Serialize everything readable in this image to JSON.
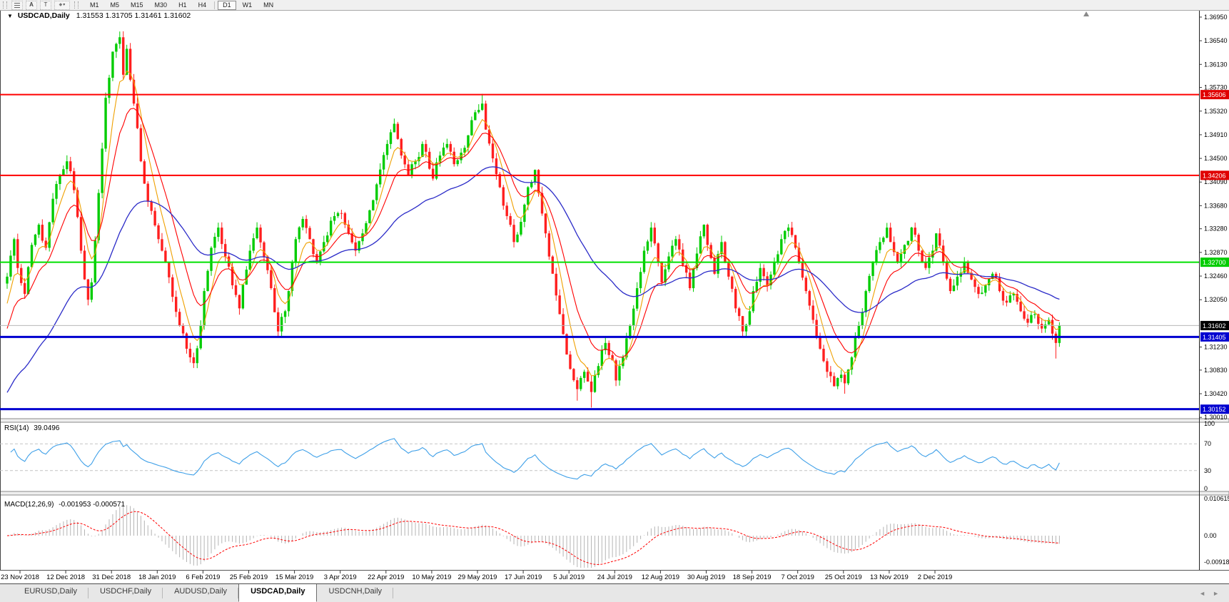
{
  "window": {
    "toolbar": {
      "tools": [
        {
          "name": "fibonacci-tool",
          "glyph": ""
        },
        {
          "name": "text-label-tool",
          "glyph": "A"
        },
        {
          "name": "text-tool",
          "glyph": "T"
        },
        {
          "name": "shapes-tool",
          "glyph": "◆",
          "caret": "▾"
        }
      ],
      "timeframes": [
        {
          "label": "M1",
          "active": false
        },
        {
          "label": "M5",
          "active": false
        },
        {
          "label": "M15",
          "active": false
        },
        {
          "label": "M30",
          "active": false
        },
        {
          "label": "H1",
          "active": false
        },
        {
          "label": "H4",
          "active": false
        },
        {
          "label": "D1",
          "active": true
        },
        {
          "label": "W1",
          "active": false
        },
        {
          "label": "MN",
          "active": false
        }
      ]
    },
    "tabs": {
      "items": [
        {
          "label": "EURUSD,Daily",
          "active": false
        },
        {
          "label": "USDCHF,Daily",
          "active": false
        },
        {
          "label": "AUDUSD,Daily",
          "active": false
        },
        {
          "label": "USDCAD,Daily",
          "active": true
        },
        {
          "label": "USDCNH,Daily",
          "active": false
        }
      ],
      "scroll_left": "◄",
      "scroll_right": "►"
    }
  },
  "chart_data": {
    "type": "candlestick",
    "symbol": "USDCAD",
    "timeframe": "Daily",
    "symbol_label": "USDCAD,Daily",
    "marker": "▼",
    "ohlc_label": "1.31553 1.31705 1.31461 1.31602",
    "open": "1.31553",
    "high": "1.31705",
    "low": "1.31461",
    "close": "1.31602",
    "current_price": "1.31602",
    "y_axis_labels": [
      "1.36950",
      "1.36540",
      "1.36130",
      "1.35730",
      "1.35320",
      "1.34910",
      "1.34500",
      "1.34090",
      "1.33680",
      "1.33280",
      "1.32870",
      "1.32460",
      "1.32050",
      "1.31230",
      "1.30830",
      "1.30420",
      "1.30010"
    ],
    "x_axis_labels": [
      "23 Nov 2018",
      "12 Dec 2018",
      "31 Dec 2018",
      "18 Jan 2019",
      "6 Feb 2019",
      "25 Feb 2019",
      "15 Mar 2019",
      "3 Apr 2019",
      "22 Apr 2019",
      "10 May 2019",
      "29 May 2019",
      "17 Jun 2019",
      "5 Jul 2019",
      "24 Jul 2019",
      "12 Aug 2019",
      "30 Aug 2019",
      "18 Sep 2019",
      "7 Oct 2019",
      "25 Oct 2019",
      "13 Nov 2019",
      "2 Dec 2019"
    ],
    "hlines": [
      {
        "price": 1.35606,
        "color": "#FF0000",
        "width": 2,
        "badge": "1.35606",
        "badge_bg": "#E00000"
      },
      {
        "price": 1.34206,
        "color": "#FF0000",
        "width": 2,
        "badge": "1.34206",
        "badge_bg": "#E00000"
      },
      {
        "price": 1.327,
        "color": "#00E100",
        "width": 2,
        "badge": "1.32700",
        "badge_bg": "#00CC00"
      },
      {
        "price": 1.31405,
        "color": "#0000D0",
        "width": 3,
        "badge": "1.31405",
        "badge_bg": "#0000D0"
      },
      {
        "price": 1.30152,
        "color": "#0000D0",
        "width": 3,
        "badge": "1.30152",
        "badge_bg": "#0000D0"
      },
      {
        "price": 1.31602,
        "color": "#B8B8B8",
        "width": 1,
        "badge": "1.31602",
        "badge_bg": "#000000"
      }
    ],
    "price_waypoints": [
      [
        0,
        1.3245
      ],
      [
        2,
        1.331
      ],
      [
        3,
        1.326
      ],
      [
        5,
        1.3215
      ],
      [
        7,
        1.33
      ],
      [
        9,
        1.3335
      ],
      [
        11,
        1.3295
      ],
      [
        13,
        1.338
      ],
      [
        15,
        1.342
      ],
      [
        17,
        1.3445
      ],
      [
        19,
        1.3395
      ],
      [
        21,
        1.329
      ],
      [
        23,
        1.3205
      ],
      [
        24,
        1.3235
      ],
      [
        26,
        1.339
      ],
      [
        28,
        1.3555
      ],
      [
        30,
        1.3635
      ],
      [
        32,
        1.366
      ],
      [
        33,
        1.3595
      ],
      [
        34,
        1.364
      ],
      [
        36,
        1.3545
      ],
      [
        38,
        1.3445
      ],
      [
        40,
        1.3375
      ],
      [
        43,
        1.331
      ],
      [
        45,
        1.327
      ],
      [
        47,
        1.321
      ],
      [
        49,
        1.316
      ],
      [
        51,
        1.312
      ],
      [
        53,
        1.3095
      ],
      [
        55,
        1.316
      ],
      [
        56,
        1.322
      ],
      [
        58,
        1.3295
      ],
      [
        60,
        1.333
      ],
      [
        62,
        1.328
      ],
      [
        64,
        1.323
      ],
      [
        66,
        1.319
      ],
      [
        69,
        1.329
      ],
      [
        71,
        1.333
      ],
      [
        73,
        1.328
      ],
      [
        75,
        1.3225
      ],
      [
        77,
        1.315
      ],
      [
        79,
        1.3185
      ],
      [
        82,
        1.331
      ],
      [
        84,
        1.3345
      ],
      [
        86,
        1.331
      ],
      [
        88,
        1.327
      ],
      [
        90,
        1.3305
      ],
      [
        93,
        1.335
      ],
      [
        95,
        1.3355
      ],
      [
        97,
        1.332
      ],
      [
        99,
        1.329
      ],
      [
        101,
        1.332
      ],
      [
        103,
        1.336
      ],
      [
        105,
        1.3405
      ],
      [
        108,
        1.3475
      ],
      [
        110,
        1.351
      ],
      [
        112,
        1.3455
      ],
      [
        114,
        1.342
      ],
      [
        116,
        1.3445
      ],
      [
        118,
        1.3475
      ],
      [
        121,
        1.3415
      ],
      [
        123,
        1.3455
      ],
      [
        125,
        1.3475
      ],
      [
        127,
        1.344
      ],
      [
        129,
        1.346
      ],
      [
        131,
        1.349
      ],
      [
        133,
        1.353
      ],
      [
        135,
        1.3545
      ],
      [
        136,
        1.35
      ],
      [
        138,
        1.345
      ],
      [
        140,
        1.34
      ],
      [
        142,
        1.335
      ],
      [
        144,
        1.3305
      ],
      [
        146,
        1.334
      ],
      [
        148,
        1.34
      ],
      [
        150,
        1.343
      ],
      [
        151,
        1.339
      ],
      [
        153,
        1.332
      ],
      [
        155,
        1.325
      ],
      [
        157,
        1.318
      ],
      [
        159,
        1.311
      ],
      [
        160,
        1.3085
      ],
      [
        162,
        1.305
      ],
      [
        164,
        1.308
      ],
      [
        166,
        1.3045
      ],
      [
        168,
        1.309
      ],
      [
        170,
        1.313
      ],
      [
        172,
        1.31
      ],
      [
        173,
        1.3065
      ],
      [
        175,
        1.3105
      ],
      [
        177,
        1.316
      ],
      [
        179,
        1.3225
      ],
      [
        181,
        1.329
      ],
      [
        183,
        1.333
      ],
      [
        185,
        1.327
      ],
      [
        186,
        1.3235
      ],
      [
        188,
        1.328
      ],
      [
        190,
        1.331
      ],
      [
        192,
        1.3265
      ],
      [
        194,
        1.3225
      ],
      [
        196,
        1.3285
      ],
      [
        198,
        1.3335
      ],
      [
        199,
        1.33
      ],
      [
        201,
        1.325
      ],
      [
        203,
        1.3305
      ],
      [
        205,
        1.3245
      ],
      [
        207,
        1.319
      ],
      [
        209,
        1.315
      ],
      [
        211,
        1.3185
      ],
      [
        212,
        1.322
      ],
      [
        214,
        1.326
      ],
      [
        216,
        1.323
      ],
      [
        218,
        1.327
      ],
      [
        220,
        1.331
      ],
      [
        222,
        1.333
      ],
      [
        224,
        1.3295
      ],
      [
        225,
        1.327
      ],
      [
        227,
        1.322
      ],
      [
        229,
        1.317
      ],
      [
        231,
        1.312
      ],
      [
        233,
        1.308
      ],
      [
        235,
        1.3055
      ],
      [
        237,
        1.3075
      ],
      [
        238,
        1.306
      ],
      [
        240,
        1.3105
      ],
      [
        242,
        1.316
      ],
      [
        244,
        1.322
      ],
      [
        246,
        1.327
      ],
      [
        248,
        1.3305
      ],
      [
        250,
        1.333
      ],
      [
        251,
        1.3305
      ],
      [
        253,
        1.327
      ],
      [
        255,
        1.33
      ],
      [
        257,
        1.333
      ],
      [
        259,
        1.329
      ],
      [
        261,
        1.326
      ],
      [
        263,
        1.329
      ],
      [
        264,
        1.332
      ],
      [
        266,
        1.327
      ],
      [
        268,
        1.322
      ],
      [
        270,
        1.3245
      ],
      [
        272,
        1.327
      ],
      [
        274,
        1.324
      ],
      [
        276,
        1.3215
      ],
      [
        278,
        1.323
      ],
      [
        280,
        1.325
      ],
      [
        282,
        1.322
      ],
      [
        284,
        1.32
      ],
      [
        286,
        1.3215
      ],
      [
        288,
        1.3185
      ],
      [
        290,
        1.3165
      ],
      [
        292,
        1.318
      ],
      [
        294,
        1.3155
      ],
      [
        296,
        1.317
      ],
      [
        298,
        1.313
      ],
      [
        299,
        1.31602
      ]
    ],
    "wick_overrides": [
      [
        32,
        "h",
        1.367
      ],
      [
        135,
        "h",
        1.3562
      ],
      [
        162,
        "l",
        1.303
      ],
      [
        166,
        "l",
        1.3018
      ],
      [
        238,
        "l",
        1.3042
      ],
      [
        298,
        "l",
        1.3103
      ]
    ],
    "colors": {
      "up": "#00CC00",
      "down": "#FF1F1F",
      "ma_fast": "#EFA000",
      "ma_mid": "#FF0000",
      "ma_slow": "#2B2BC8",
      "rsi": "#3FA0E8",
      "macd_hist": "#B4B4B4",
      "macd_signal": "#FF0000"
    },
    "indicators": {
      "rsi": {
        "label": "RSI(14)",
        "value": "39.0496",
        "axis": [
          "100",
          "70",
          "30",
          "0"
        ],
        "levels": [
          70,
          30
        ]
      },
      "macd": {
        "label": "MACD(12,26,9)",
        "values": "-0.001953 -0.000571",
        "axis": [
          "0.010615",
          "0.00",
          "-0.00918"
        ],
        "max": 0.010615,
        "min": -0.00918
      }
    }
  }
}
